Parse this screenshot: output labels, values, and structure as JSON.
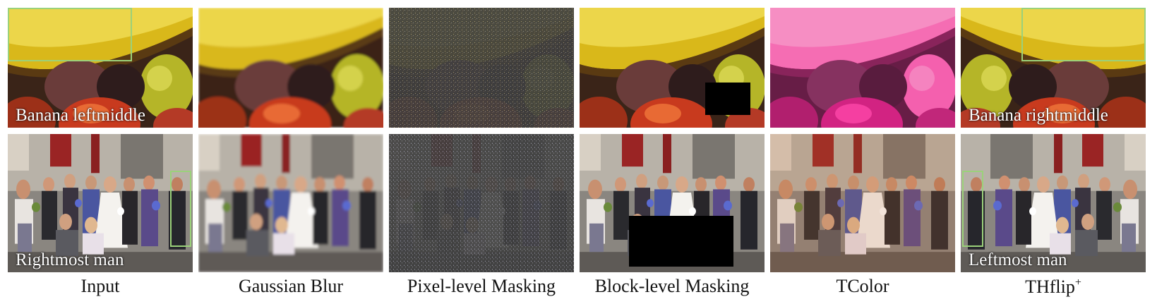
{
  "columns": [
    {
      "caption": "Input"
    },
    {
      "caption": "Gaussian Blur"
    },
    {
      "caption": "Pixel-level Masking"
    },
    {
      "caption": "Block-level Masking"
    },
    {
      "caption": "TColor"
    },
    {
      "caption": "THflip",
      "caption_sup": "+"
    }
  ],
  "rows": [
    {
      "subject": "fruit-bowl",
      "labels": {
        "input": "Banana leftmiddle",
        "thflip": "Banana rightmiddle"
      }
    },
    {
      "subject": "wedding-group",
      "labels": {
        "input": "Rightmost man",
        "thflip": "Leftmost man"
      }
    }
  ],
  "colors": {
    "bbox": "#9bd17a",
    "tcolor_tint": "#e0208c",
    "caption": "#111111"
  }
}
